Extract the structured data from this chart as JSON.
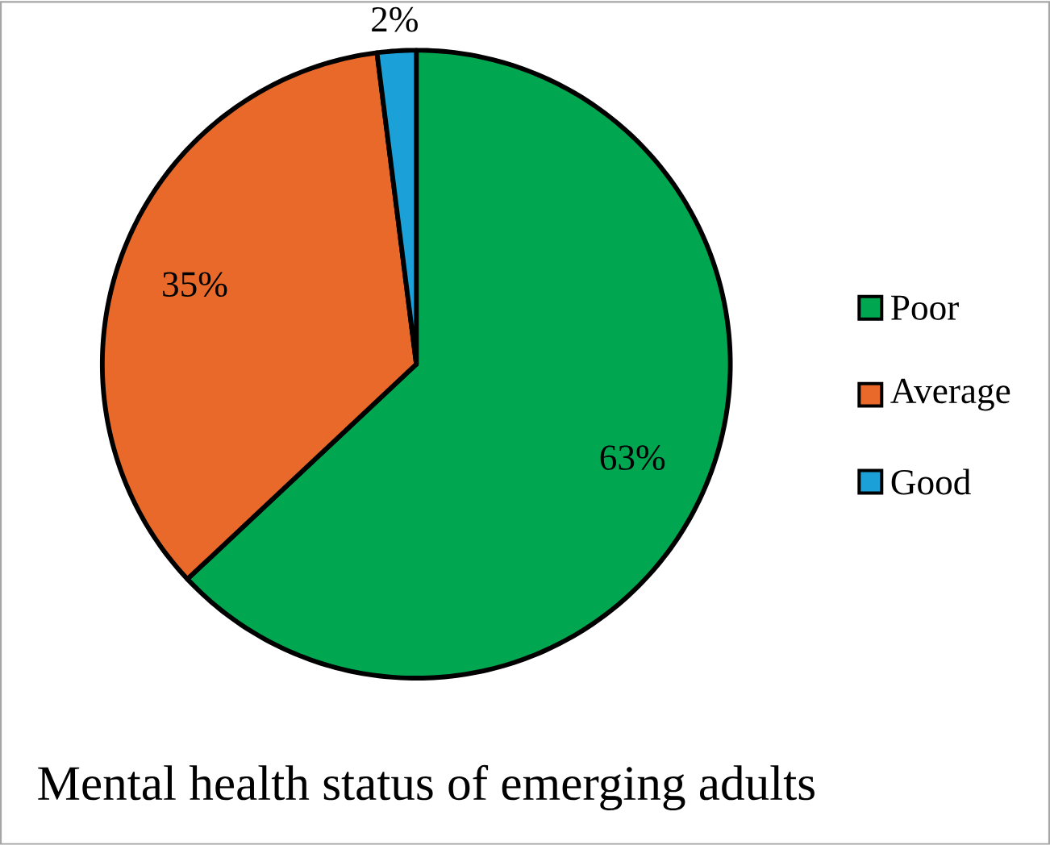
{
  "chart_data": {
    "type": "pie",
    "title": "Mental health status of emerging adults",
    "categories": [
      "Poor",
      "Average",
      "Good"
    ],
    "values": [
      63,
      35,
      2
    ],
    "colors": [
      "#00a650",
      "#e8692a",
      "#1ba1d8"
    ],
    "value_labels": [
      "63%",
      "35%",
      "2%"
    ],
    "legend": "right"
  }
}
